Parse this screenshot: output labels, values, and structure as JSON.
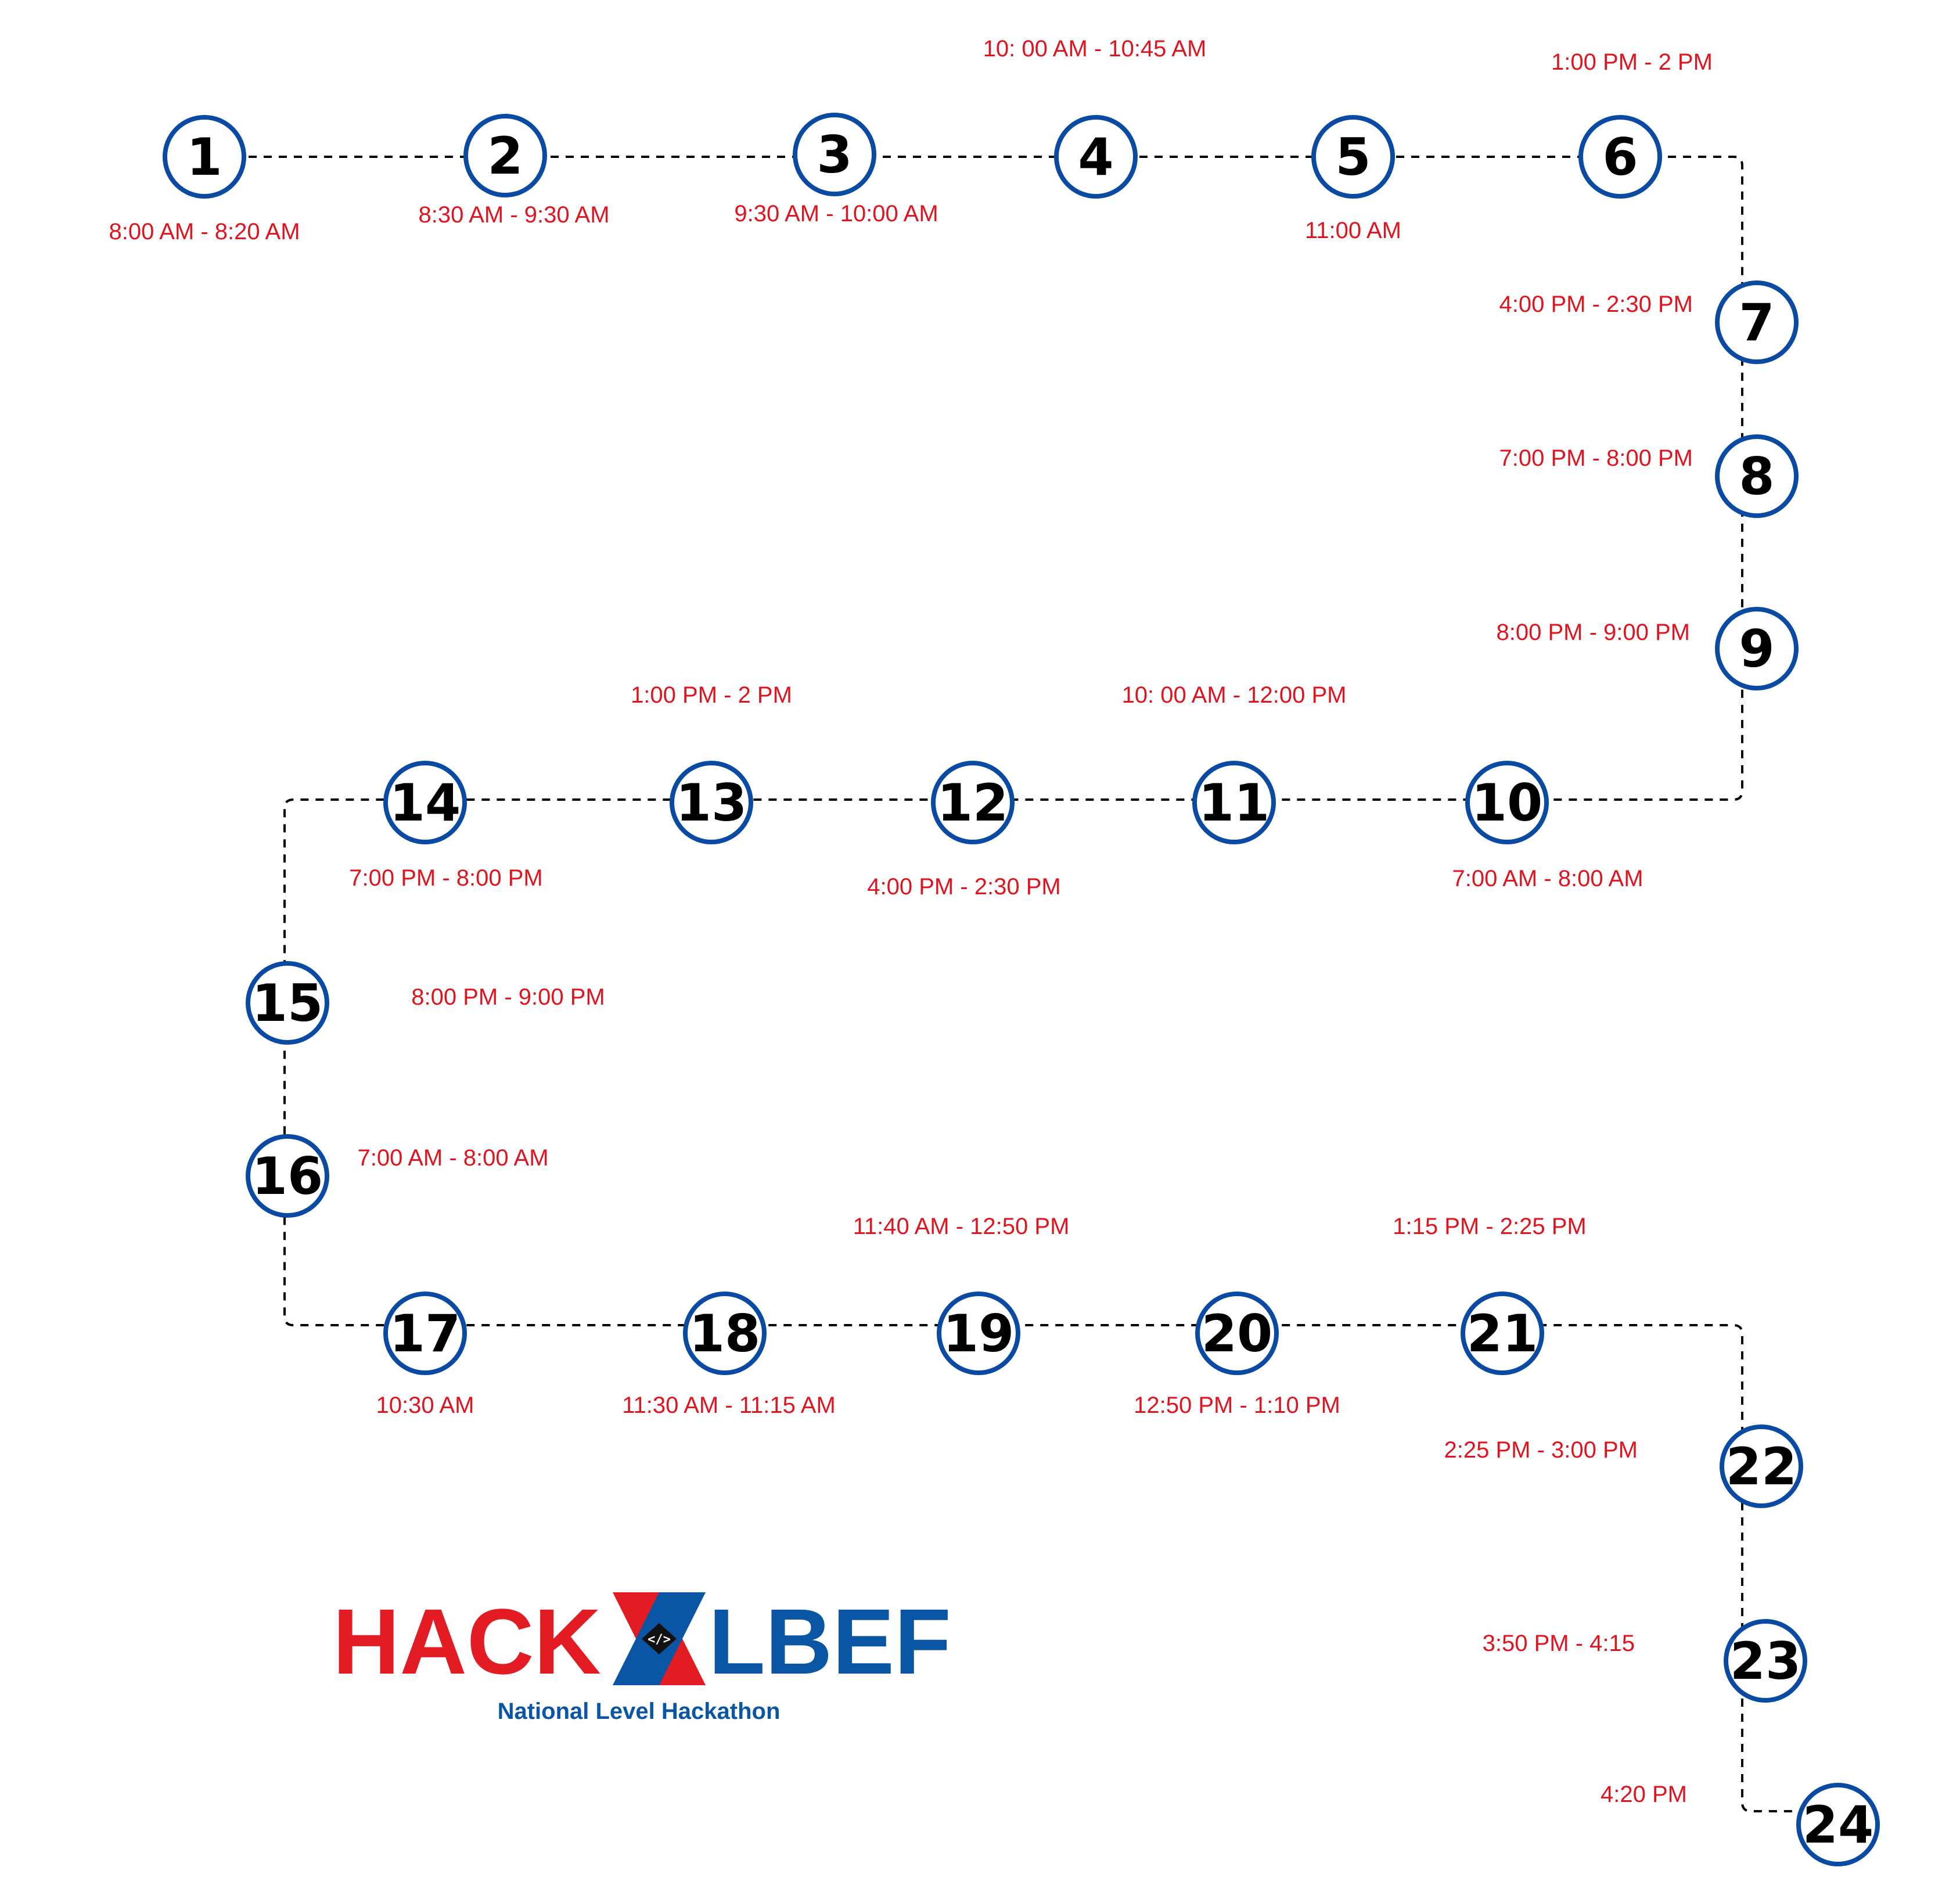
{
  "colors": {
    "node_stroke": "#0a4aa3",
    "number": "#000000",
    "time": "#e0141e",
    "path": "#000000",
    "logo_red": "#e31b23",
    "logo_blue": "#0a56a5",
    "logo_badge": "#111111"
  },
  "nodes": [
    {
      "id": "n1",
      "number": "1",
      "time": "8:00 AM - 8:20 AM"
    },
    {
      "id": "n2",
      "number": "2",
      "time": "8:30 AM - 9:30 AM"
    },
    {
      "id": "n3",
      "number": "3",
      "time": "9:30 AM - 10:00 AM"
    },
    {
      "id": "n4",
      "number": "4",
      "time": "10: 00 AM - 10:45 AM"
    },
    {
      "id": "n5",
      "number": "5",
      "time": "11:00 AM"
    },
    {
      "id": "n6",
      "number": "6",
      "time": "1:00 PM - 2 PM"
    },
    {
      "id": "n7",
      "number": "7",
      "time": "4:00 PM - 2:30 PM"
    },
    {
      "id": "n8",
      "number": "8",
      "time": "7:00 PM - 8:00 PM"
    },
    {
      "id": "n9",
      "number": "9",
      "time": "8:00 PM - 9:00 PM"
    },
    {
      "id": "n10",
      "number": "10",
      "time": "7:00 AM - 8:00 AM"
    },
    {
      "id": "n11",
      "number": "11",
      "time": "10: 00 AM - 12:00 PM"
    },
    {
      "id": "n12",
      "number": "12",
      "time": "4:00 PM - 2:30 PM"
    },
    {
      "id": "n13",
      "number": "13",
      "time": "1:00 PM - 2 PM"
    },
    {
      "id": "n14",
      "number": "14",
      "time": "7:00 PM - 8:00 PM"
    },
    {
      "id": "n15",
      "number": "15",
      "time": "8:00 PM - 9:00 PM"
    },
    {
      "id": "n16",
      "number": "16",
      "time": "7:00 AM - 8:00 AM"
    },
    {
      "id": "n17",
      "number": "17",
      "time": "10:30 AM"
    },
    {
      "id": "n18",
      "number": "18",
      "time": "11:30 AM - 11:15 AM"
    },
    {
      "id": "n19",
      "number": "19",
      "time": "11:40 AM - 12:50 PM"
    },
    {
      "id": "n20",
      "number": "20",
      "time": "12:50 PM - 1:10 PM"
    },
    {
      "id": "n21",
      "number": "21",
      "time": "1:15 PM - 2:25 PM"
    },
    {
      "id": "n22",
      "number": "22",
      "time": "2:25 PM - 3:00 PM"
    },
    {
      "id": "n23",
      "number": "23",
      "time": "3:50 PM - 4:15"
    },
    {
      "id": "n24",
      "number": "24",
      "time": "4:20 PM"
    }
  ],
  "logo": {
    "word_left": "HACK",
    "word_right": "LBEF",
    "badge_text": "</>",
    "tagline": "National Level Hackathon"
  }
}
